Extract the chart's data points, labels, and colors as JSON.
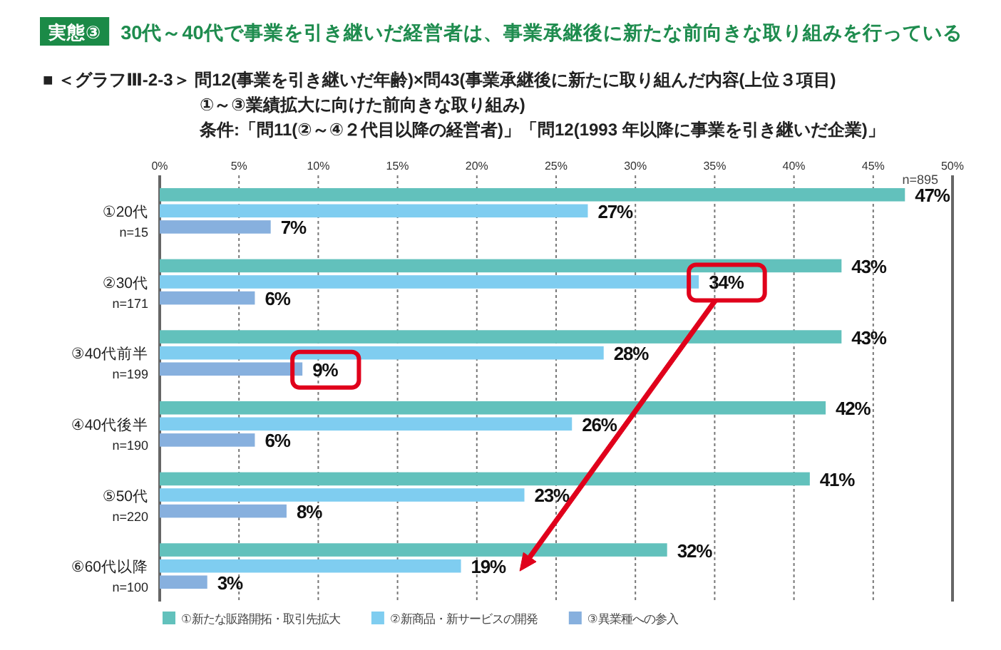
{
  "chart_data": {
    "type": "bar",
    "orientation": "horizontal",
    "title": "30代～40代で事業を引き継いだ経営者は、事業承継後に新たな前向きな取り組みを行っている",
    "subtitle": "■ ＜グラフⅢ-2-3＞ 問12(事業を引き継いだ年齢)×問43(事業承継後に新たに取り組んだ内容(上位３項目)\n①～③業績拡大に向けた前向きな取り組み)\n条件:「問11(②～④２代目以降の経営者)」「問12(1993 年以降に事業を引き継いだ企業)」",
    "categories": [
      "①20代\nn=15",
      "②30代\nn=171",
      "③40代前半\nn=199",
      "④40代後半\nn=190",
      "⑤50代\nn=220",
      "⑥60代以降\nn=100"
    ],
    "series": [
      {
        "name": "①新たな販路開拓・取引先拡大",
        "color": "#62c1bc",
        "values": [
          47,
          43,
          43,
          42,
          41,
          32
        ],
        "value_labels": [
          "47%",
          "43%",
          "43%",
          "42%",
          "41%",
          "32%"
        ]
      },
      {
        "name": "②新商品・新サービスの開発",
        "color": "#7fcdf0",
        "values": [
          27,
          34,
          28,
          26,
          23,
          19
        ],
        "value_labels": [
          "27%",
          "34%",
          "28%",
          "26%",
          "23%",
          "19%"
        ]
      },
      {
        "name": "③異業種への参入",
        "color": "#87b0de",
        "values": [
          7,
          6,
          9,
          6,
          8,
          3
        ],
        "value_labels": [
          "7%",
          "6%",
          "9%",
          "6%",
          "8%",
          "3%"
        ]
      }
    ],
    "xlim": [
      0,
      50
    ],
    "xticks": [
      {
        "value": 0,
        "label": "0%"
      },
      {
        "value": 5,
        "label": "5%"
      },
      {
        "value": 10,
        "label": "10%"
      },
      {
        "value": 15,
        "label": "15%"
      },
      {
        "value": 20,
        "label": "20%"
      },
      {
        "value": 25,
        "label": "25%"
      },
      {
        "value": 30,
        "label": "30%"
      },
      {
        "value": 35,
        "label": "35%"
      },
      {
        "value": 40,
        "label": "40%"
      },
      {
        "value": 45,
        "label": "45%"
      },
      {
        "value": 50,
        "label": "50%"
      }
    ],
    "grid": "x",
    "legend": "bottom",
    "annotations": [
      "実態③",
      "n=895"
    ]
  }
}
